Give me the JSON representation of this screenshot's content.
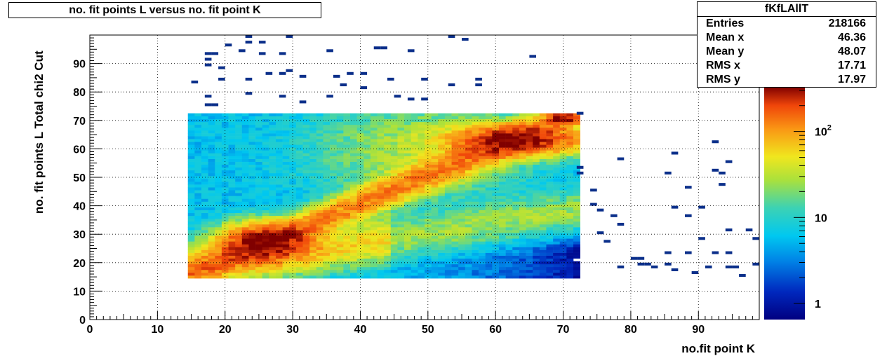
{
  "chart_data": {
    "type": "heatmap",
    "title": "no. fit points L versus no. fit point K",
    "xlabel": "no.fit point K",
    "ylabel": "no. fit points  L   Total chi2 Cut",
    "xlim": [
      0,
      99
    ],
    "ylim": [
      0,
      100
    ],
    "x_ticks": [
      "0",
      "10",
      "20",
      "30",
      "40",
      "50",
      "60",
      "70",
      "80",
      "90"
    ],
    "y_ticks": [
      "0",
      "10",
      "20",
      "30",
      "40",
      "50",
      "60",
      "70",
      "80",
      "90"
    ],
    "z_scale": "log",
    "z_range": [
      0.65,
      330
    ],
    "z_ticks": [
      {
        "label": "1",
        "value": 1
      },
      {
        "label": "10",
        "value": 10
      },
      {
        "label": "10",
        "sup": "2",
        "value": 100
      }
    ],
    "grid": true,
    "legend": "colorbar-right",
    "dense_region": {
      "x": [
        14.5,
        72.5
      ],
      "y": [
        14.5,
        72.5
      ]
    },
    "hot_spots": [
      {
        "x": 26,
        "y": 27,
        "peak": 300
      },
      {
        "x": 63,
        "y": 63,
        "peak": 300
      },
      {
        "x": 70,
        "y": 71,
        "peak": 280
      }
    ],
    "sparse_points": [
      [
        23,
        99
      ],
      [
        29,
        99
      ],
      [
        53,
        99
      ],
      [
        55,
        98
      ],
      [
        20,
        96
      ],
      [
        23,
        97
      ],
      [
        25,
        97
      ],
      [
        17,
        93
      ],
      [
        18,
        93
      ],
      [
        22,
        94
      ],
      [
        25,
        93
      ],
      [
        28,
        93
      ],
      [
        35,
        94
      ],
      [
        42,
        95
      ],
      [
        43,
        95
      ],
      [
        47,
        94
      ],
      [
        65,
        92
      ],
      [
        17,
        91
      ],
      [
        17,
        89
      ],
      [
        19,
        88
      ],
      [
        15,
        83
      ],
      [
        19,
        84
      ],
      [
        23,
        84
      ],
      [
        26,
        86
      ],
      [
        28,
        86
      ],
      [
        29,
        87
      ],
      [
        31,
        85
      ],
      [
        36,
        85
      ],
      [
        38,
        86
      ],
      [
        40,
        86
      ],
      [
        44,
        84
      ],
      [
        49,
        84
      ],
      [
        53,
        82
      ],
      [
        57,
        84
      ],
      [
        57,
        82
      ],
      [
        37,
        82
      ],
      [
        40,
        81
      ],
      [
        17,
        78
      ],
      [
        23,
        79
      ],
      [
        28,
        78
      ],
      [
        35,
        78
      ],
      [
        45,
        78
      ],
      [
        47,
        77
      ],
      [
        49,
        77
      ],
      [
        31,
        76
      ],
      [
        17,
        75
      ],
      [
        18,
        75
      ],
      [
        72,
        72
      ],
      [
        72,
        53
      ],
      [
        72,
        51
      ],
      [
        74,
        45
      ],
      [
        74,
        40
      ],
      [
        75,
        38
      ],
      [
        77,
        36
      ],
      [
        78,
        33
      ],
      [
        75,
        30
      ],
      [
        76,
        27
      ],
      [
        78,
        56
      ],
      [
        86,
        58
      ],
      [
        85,
        51
      ],
      [
        92,
        62
      ],
      [
        94,
        55
      ],
      [
        88,
        46
      ],
      [
        92,
        52
      ],
      [
        93,
        47
      ],
      [
        93,
        51
      ],
      [
        86,
        39
      ],
      [
        88,
        36
      ],
      [
        90,
        39
      ],
      [
        94,
        31
      ],
      [
        97,
        31
      ],
      [
        98,
        28
      ],
      [
        90,
        28
      ],
      [
        78,
        18
      ],
      [
        80,
        21
      ],
      [
        81,
        19
      ],
      [
        81,
        21
      ],
      [
        82,
        19
      ],
      [
        83,
        18
      ],
      [
        85,
        19
      ],
      [
        86,
        17
      ],
      [
        85,
        23
      ],
      [
        88,
        23
      ],
      [
        89,
        16
      ],
      [
        91,
        18
      ],
      [
        92,
        23
      ],
      [
        94,
        18
      ],
      [
        94,
        23
      ],
      [
        95,
        18
      ],
      [
        96,
        15
      ],
      [
        98,
        19
      ]
    ]
  },
  "stats": {
    "name": "fKfLAllT",
    "rows": [
      {
        "label": "Entries",
        "value": "218166"
      },
      {
        "label": "Mean x",
        "value": "46.36"
      },
      {
        "label": "Mean y",
        "value": "48.07"
      },
      {
        "label": "RMS x",
        "value": "17.71"
      },
      {
        "label": "RMS y",
        "value": "17.97"
      }
    ]
  }
}
